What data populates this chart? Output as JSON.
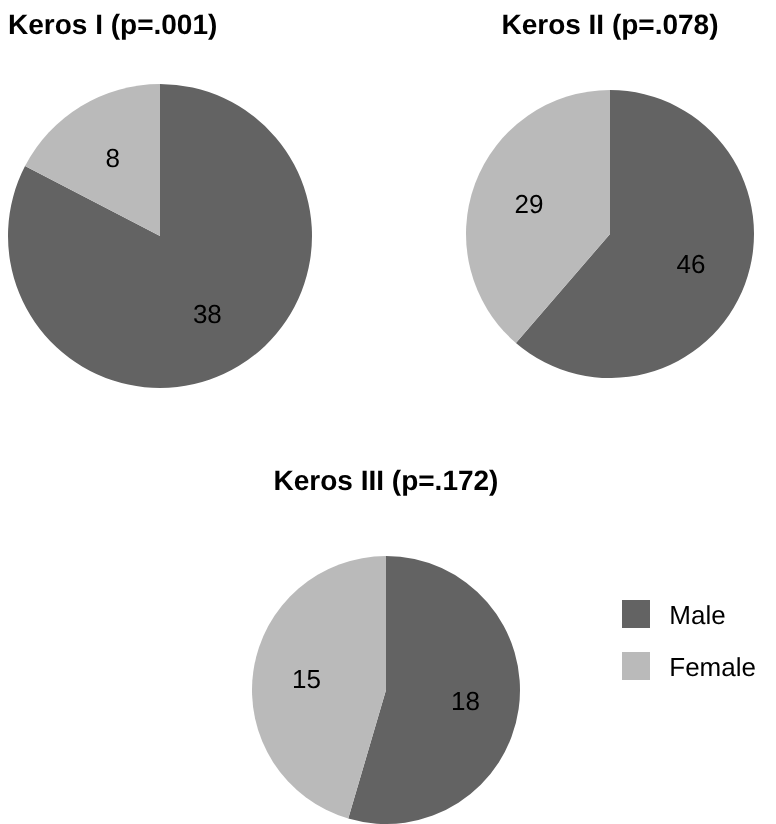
{
  "chart_data": [
    {
      "type": "pie",
      "title": "Keros I (p=.001)",
      "categories": [
        null,
        null
      ],
      "values": [
        38,
        8
      ],
      "colors": [
        "#636363",
        "#bababa"
      ],
      "data_labels": true
    },
    {
      "type": "pie",
      "title": "Keros II (p=.078)",
      "categories": [
        null,
        null
      ],
      "values": [
        46,
        29
      ],
      "colors": [
        "#636363",
        "#bababa"
      ],
      "data_labels": true
    },
    {
      "type": "pie",
      "title": "Keros III (p=.172)",
      "categories": [
        "Male",
        "Female"
      ],
      "values": [
        18,
        15
      ],
      "colors": [
        "#636363",
        "#bababa"
      ],
      "data_labels": true,
      "legend": "right"
    }
  ]
}
